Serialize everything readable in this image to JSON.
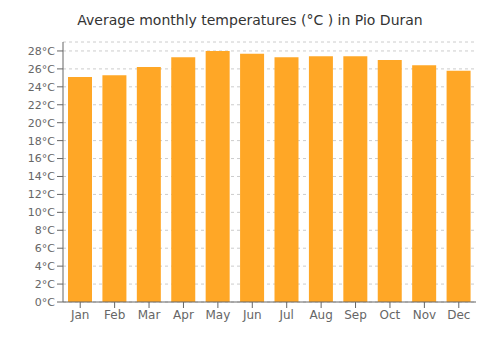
{
  "chart_data": {
    "type": "bar",
    "title": "Average monthly temperatures (°C ) in Pio Duran",
    "categories": [
      "Jan",
      "Feb",
      "Mar",
      "Apr",
      "May",
      "Jun",
      "Jul",
      "Aug",
      "Sep",
      "Oct",
      "Nov",
      "Dec"
    ],
    "values": [
      25.1,
      25.3,
      26.2,
      27.3,
      28.0,
      27.7,
      27.3,
      27.4,
      27.4,
      27.0,
      26.4,
      25.8
    ],
    "color": "#FFA726",
    "ylim": [
      0,
      29
    ],
    "yticks": [
      {
        "value": 0,
        "label": "0°C"
      },
      {
        "value": 2,
        "label": "2°C"
      },
      {
        "value": 4,
        "label": "4°C"
      },
      {
        "value": 6,
        "label": "6°C"
      },
      {
        "value": 8,
        "label": "8°C"
      },
      {
        "value": 10,
        "label": "10°C"
      },
      {
        "value": 12,
        "label": "12°C"
      },
      {
        "value": 14,
        "label": "14°C"
      },
      {
        "value": 16,
        "label": "16°C"
      },
      {
        "value": 18,
        "label": "18°C"
      },
      {
        "value": 20,
        "label": "20°C"
      },
      {
        "value": 22,
        "label": "22°C"
      },
      {
        "value": 24,
        "label": "24°C"
      },
      {
        "value": 26,
        "label": "26°C"
      },
      {
        "value": 28,
        "label": "28°C"
      }
    ],
    "grid": true
  }
}
